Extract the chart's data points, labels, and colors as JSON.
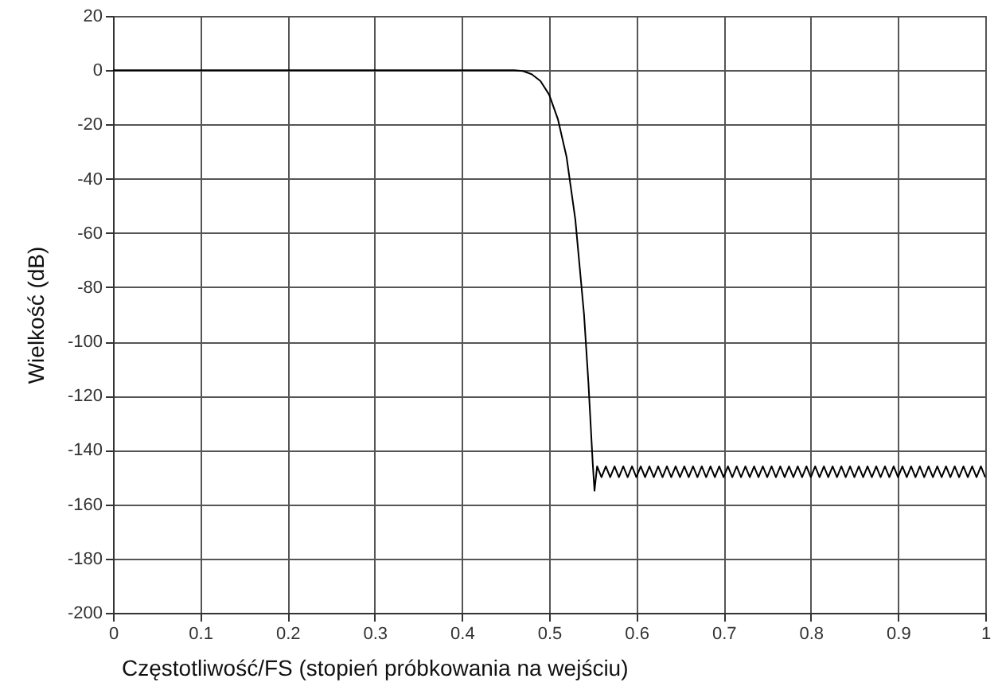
{
  "chart_data": {
    "type": "line",
    "xlabel": "Częstotliwość/FS (stopień próbkowania na wejściu)",
    "ylabel": "Wielkość (dB)",
    "x": [
      0,
      0.1,
      0.2,
      0.3,
      0.4,
      0.45,
      0.46,
      0.47,
      0.48,
      0.49,
      0.5,
      0.51,
      0.52,
      0.53,
      0.54,
      0.545,
      0.55,
      0.552,
      0.555,
      0.56,
      0.565,
      0.57,
      0.575,
      0.58,
      0.585,
      0.59,
      0.595,
      0.6,
      0.605,
      0.61,
      0.615,
      0.62,
      0.625,
      0.63,
      0.635,
      0.64,
      0.645,
      0.65,
      0.655,
      0.66,
      0.665,
      0.67,
      0.675,
      0.68,
      0.685,
      0.69,
      0.695,
      0.7,
      0.705,
      0.71,
      0.715,
      0.72,
      0.725,
      0.73,
      0.735,
      0.74,
      0.745,
      0.75,
      0.755,
      0.76,
      0.765,
      0.77,
      0.775,
      0.78,
      0.785,
      0.79,
      0.795,
      0.8,
      0.805,
      0.81,
      0.815,
      0.82,
      0.825,
      0.83,
      0.835,
      0.84,
      0.845,
      0.85,
      0.855,
      0.86,
      0.865,
      0.87,
      0.875,
      0.88,
      0.885,
      0.89,
      0.895,
      0.9,
      0.905,
      0.91,
      0.915,
      0.92,
      0.925,
      0.93,
      0.935,
      0.94,
      0.945,
      0.95,
      0.955,
      0.96,
      0.965,
      0.97,
      0.975,
      0.98,
      0.985,
      0.99,
      0.995,
      1.0
    ],
    "series": [
      {
        "color": "#000000",
        "values": [
          0,
          0,
          0,
          0,
          0,
          0,
          0,
          -0.3,
          -1.5,
          -4,
          -9,
          -18,
          -32,
          -55,
          -90,
          -115,
          -145,
          -155,
          -146,
          -150,
          -146,
          -150,
          -146,
          -150,
          -146,
          -150,
          -146,
          -150,
          -146,
          -150,
          -146,
          -150,
          -146,
          -150,
          -146,
          -150,
          -146,
          -150,
          -146,
          -150,
          -146,
          -150,
          -146,
          -150,
          -146,
          -150,
          -146,
          -150,
          -146,
          -150,
          -146,
          -150,
          -146,
          -150,
          -146,
          -150,
          -146,
          -150,
          -146,
          -150,
          -146,
          -150,
          -146,
          -150,
          -146,
          -150,
          -146,
          -150,
          -146,
          -150,
          -146,
          -150,
          -146,
          -150,
          -146,
          -150,
          -146,
          -150,
          -146,
          -150,
          -146,
          -150,
          -146,
          -150,
          -146,
          -150,
          -146,
          -150,
          -146,
          -150,
          -146,
          -150,
          -146,
          -150,
          -146,
          -150,
          -146,
          -150,
          -146,
          -150,
          -146,
          -150,
          -146,
          -150,
          -146,
          -150,
          -146,
          -150
        ]
      }
    ],
    "xlim": [
      0,
      1
    ],
    "xticks": [
      0,
      0.1,
      0.2,
      0.3,
      0.4,
      0.5,
      0.6,
      0.7,
      0.8,
      0.9,
      1
    ],
    "ylim": [
      -200,
      20
    ],
    "yticks": [
      -200,
      -180,
      -160,
      -140,
      -120,
      -100,
      -80,
      -60,
      -40,
      -20,
      0,
      20
    ],
    "grid": true,
    "marker": "none",
    "line_style": "solid"
  }
}
